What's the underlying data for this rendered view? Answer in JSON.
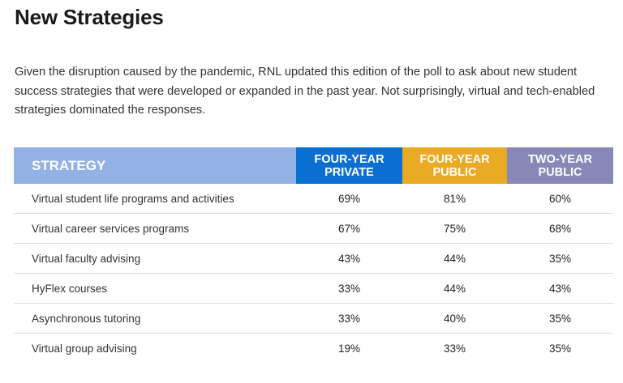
{
  "title": "New Strategies",
  "intro": "Given the disruption caused by the pandemic, RNL updated this edition of the poll to ask about new student success strategies that were developed or expanded in the past year. Not surprisingly, virtual and tech-enabled strategies dominated the responses.",
  "colors": {
    "strategy": "#92b2e6",
    "four_year_private": "#0a6fd0",
    "four_year_public": "#ebaa24",
    "two_year_public": "#8787b8"
  },
  "table": {
    "headers": [
      {
        "line1": "STRATEGY",
        "line2": ""
      },
      {
        "line1": "FOUR-YEAR",
        "line2": "PRIVATE"
      },
      {
        "line1": "FOUR-YEAR",
        "line2": "PUBLIC"
      },
      {
        "line1": "TWO-YEAR",
        "line2": "PUBLIC"
      }
    ],
    "rows": [
      [
        "Virtual student life programs and activities",
        "69%",
        "81%",
        "60%"
      ],
      [
        "Virtual career services programs",
        "67%",
        "75%",
        "68%"
      ],
      [
        "Virtual faculty advising",
        "43%",
        "44%",
        "35%"
      ],
      [
        "HyFlex courses",
        "33%",
        "44%",
        "43%"
      ],
      [
        "Asynchronous tutoring",
        "33%",
        "40%",
        "35%"
      ],
      [
        "Virtual group advising",
        "19%",
        "33%",
        "35%"
      ]
    ]
  }
}
